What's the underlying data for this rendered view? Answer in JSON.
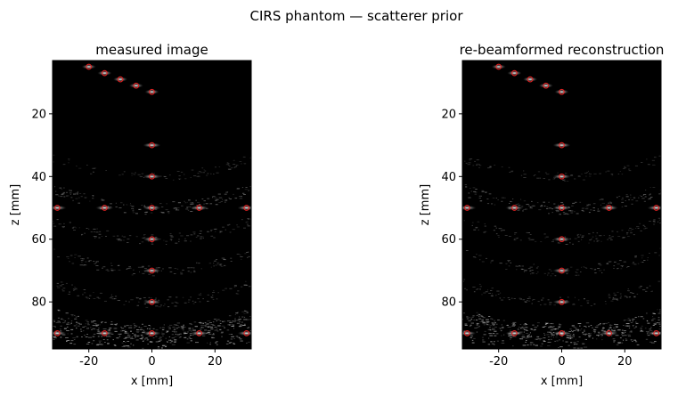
{
  "suptitle": "CIRS phantom — scatterer prior",
  "colors": {
    "background": "#000000",
    "marker": "#e02020",
    "speckle": "#cfcfcf"
  },
  "chart_data": [
    {
      "type": "scatter",
      "title": "measured image",
      "xlabel": "x [mm]",
      "ylabel": "z [mm]",
      "xlim": [
        -31.5,
        31.5
      ],
      "ylim": [
        3,
        95
      ],
      "y_inverted": true,
      "xticks": [
        -20,
        0,
        20
      ],
      "yticks": [
        20,
        40,
        60,
        80
      ],
      "grid": false,
      "background": "grayscale ultrasound b-mode",
      "points": [
        {
          "x": -20,
          "z": 5
        },
        {
          "x": -15,
          "z": 7
        },
        {
          "x": -10,
          "z": 9
        },
        {
          "x": -5,
          "z": 11
        },
        {
          "x": 0,
          "z": 13
        },
        {
          "x": 0,
          "z": 30
        },
        {
          "x": 0,
          "z": 40
        },
        {
          "x": -30,
          "z": 50
        },
        {
          "x": -15,
          "z": 50
        },
        {
          "x": 0,
          "z": 50
        },
        {
          "x": 15,
          "z": 50
        },
        {
          "x": 30,
          "z": 50
        },
        {
          "x": 0,
          "z": 60
        },
        {
          "x": 0,
          "z": 70
        },
        {
          "x": 0,
          "z": 80
        },
        {
          "x": -30,
          "z": 90
        },
        {
          "x": -15,
          "z": 90
        },
        {
          "x": 0,
          "z": 90
        },
        {
          "x": 15,
          "z": 90
        },
        {
          "x": 30,
          "z": 90
        }
      ]
    },
    {
      "type": "scatter",
      "title": "re-beamformed reconstruction",
      "xlabel": "x [mm]",
      "ylabel": "z [mm]",
      "xlim": [
        -31.5,
        31.5
      ],
      "ylim": [
        3,
        95
      ],
      "y_inverted": true,
      "xticks": [
        -20,
        0,
        20
      ],
      "yticks": [
        20,
        40,
        60,
        80
      ],
      "grid": false,
      "background": "grayscale ultrasound b-mode",
      "points": [
        {
          "x": -20,
          "z": 5
        },
        {
          "x": -15,
          "z": 7
        },
        {
          "x": -10,
          "z": 9
        },
        {
          "x": -5,
          "z": 11
        },
        {
          "x": 0,
          "z": 13
        },
        {
          "x": 0,
          "z": 30
        },
        {
          "x": 0,
          "z": 40
        },
        {
          "x": -30,
          "z": 50
        },
        {
          "x": -15,
          "z": 50
        },
        {
          "x": 0,
          "z": 50
        },
        {
          "x": 15,
          "z": 50
        },
        {
          "x": 30,
          "z": 50
        },
        {
          "x": 0,
          "z": 60
        },
        {
          "x": 0,
          "z": 70
        },
        {
          "x": 0,
          "z": 80
        },
        {
          "x": -30,
          "z": 90
        },
        {
          "x": -15,
          "z": 90
        },
        {
          "x": 0,
          "z": 90
        },
        {
          "x": 15,
          "z": 90
        },
        {
          "x": 30,
          "z": 90
        }
      ]
    }
  ]
}
